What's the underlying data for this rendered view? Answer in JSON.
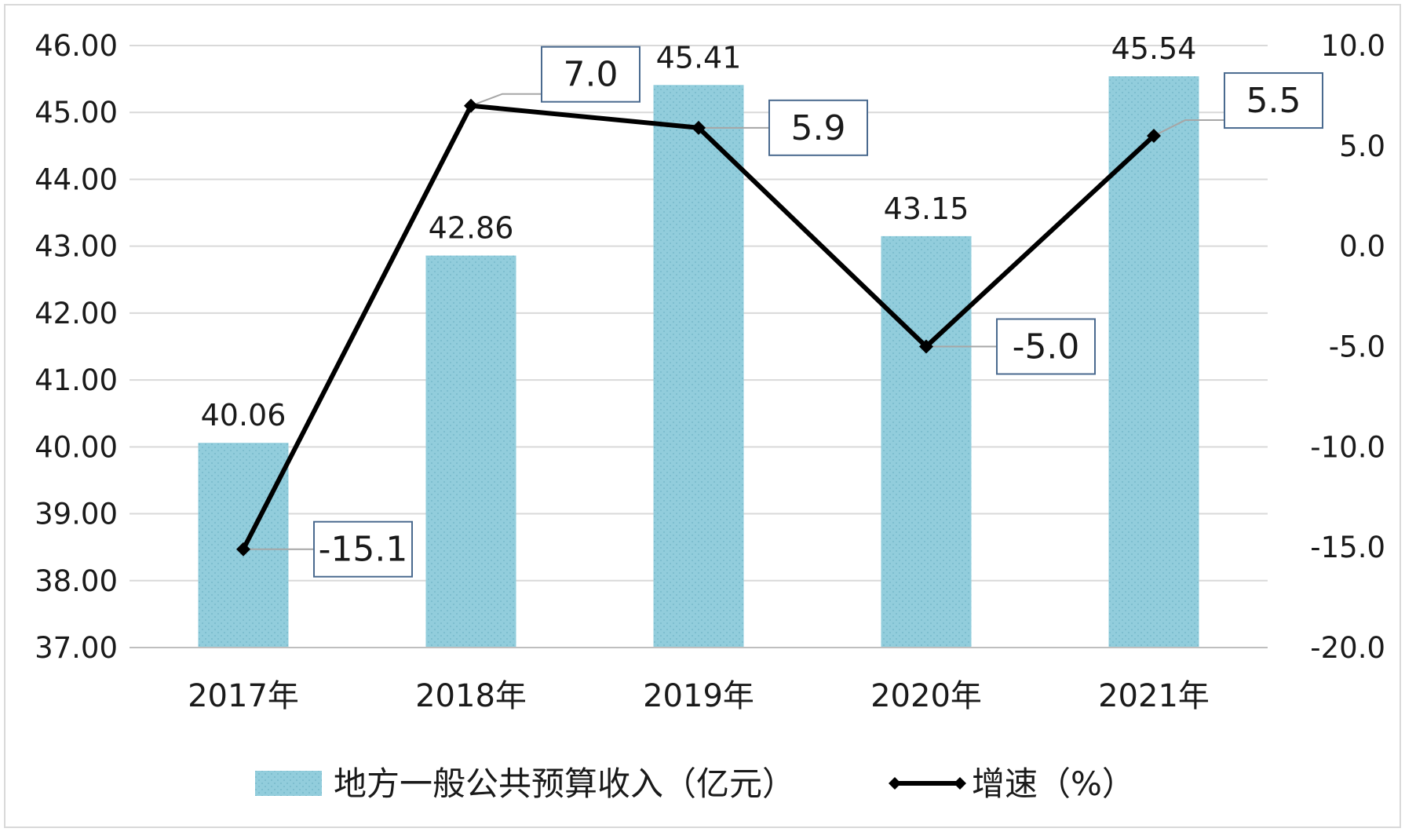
{
  "chart_data": {
    "type": "bar",
    "categories": [
      "2017年",
      "2018年",
      "2019年",
      "2020年",
      "2021年"
    ],
    "series": [
      {
        "name": "地方一般公共预算收入（亿元）",
        "type": "bar",
        "axis": "left",
        "values": [
          40.06,
          42.86,
          45.41,
          43.15,
          45.54
        ],
        "labels": [
          "40.06",
          "42.86",
          "45.41",
          "43.15",
          "45.54"
        ],
        "color": "#92cddc"
      },
      {
        "name": "增速（%）",
        "type": "line",
        "axis": "right",
        "values": [
          -15.1,
          7.0,
          5.9,
          -5.0,
          5.5
        ],
        "labels": [
          "-15.1",
          "7.0",
          "5.9",
          "-5.0",
          "5.5"
        ],
        "color": "#000000"
      }
    ],
    "y_left": {
      "min": 37,
      "max": 46,
      "ticks": [
        "37.00",
        "38.00",
        "39.00",
        "40.00",
        "41.00",
        "42.00",
        "43.00",
        "44.00",
        "45.00",
        "46.00"
      ]
    },
    "y_right": {
      "min": -20,
      "max": 10,
      "ticks": [
        "-20.0",
        "-15.0",
        "-10.0",
        "-5.0",
        "0.0",
        "5.0",
        "10.0"
      ]
    },
    "grid": true,
    "legend_position": "bottom",
    "title": "",
    "xlabel": "",
    "ylabel": ""
  }
}
